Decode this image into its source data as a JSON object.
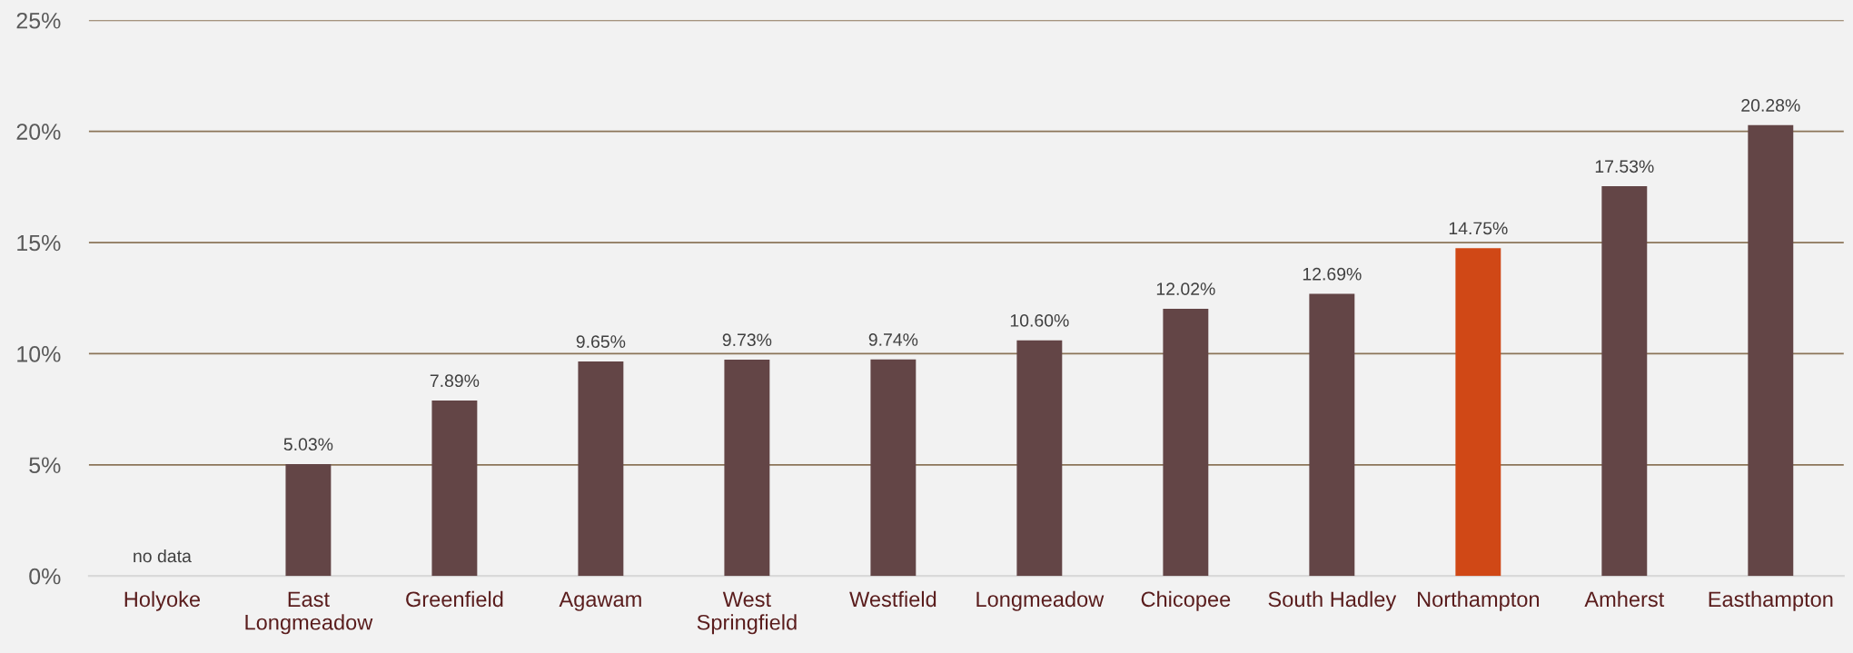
{
  "chart_data": {
    "type": "bar",
    "categories": [
      "Holyoke",
      "East Longmeadow",
      "Greenfield",
      "Agawam",
      "West Springfield",
      "Westfield",
      "Longmeadow",
      "Chicopee",
      "South Hadley",
      "Northampton",
      "Amherst",
      "Easthampton"
    ],
    "values": [
      null,
      5.03,
      7.89,
      9.65,
      9.73,
      9.74,
      10.6,
      12.02,
      12.69,
      14.75,
      17.53,
      20.28
    ],
    "colors": [
      "#634546",
      "#634546",
      "#634546",
      "#634546",
      "#634546",
      "#634546",
      "#634546",
      "#634546",
      "#634546",
      "#d04816",
      "#634546",
      "#634546"
    ],
    "value_labels": [
      "no data",
      "5.03%",
      "7.89%",
      "9.65%",
      "9.73%",
      "9.74%",
      "10.60%",
      "12.02%",
      "12.69%",
      "14.75%",
      "17.53%",
      "20.28%"
    ],
    "ylim": [
      0,
      25
    ],
    "yticks": [
      {
        "value": 0,
        "label": "0%"
      },
      {
        "value": 5,
        "label": "5%"
      },
      {
        "value": 10,
        "label": "10%"
      },
      {
        "value": 15,
        "label": "15%"
      },
      {
        "value": 20,
        "label": "20%"
      },
      {
        "value": 25,
        "label": "25%"
      }
    ],
    "grid": "y",
    "legend": false
  }
}
